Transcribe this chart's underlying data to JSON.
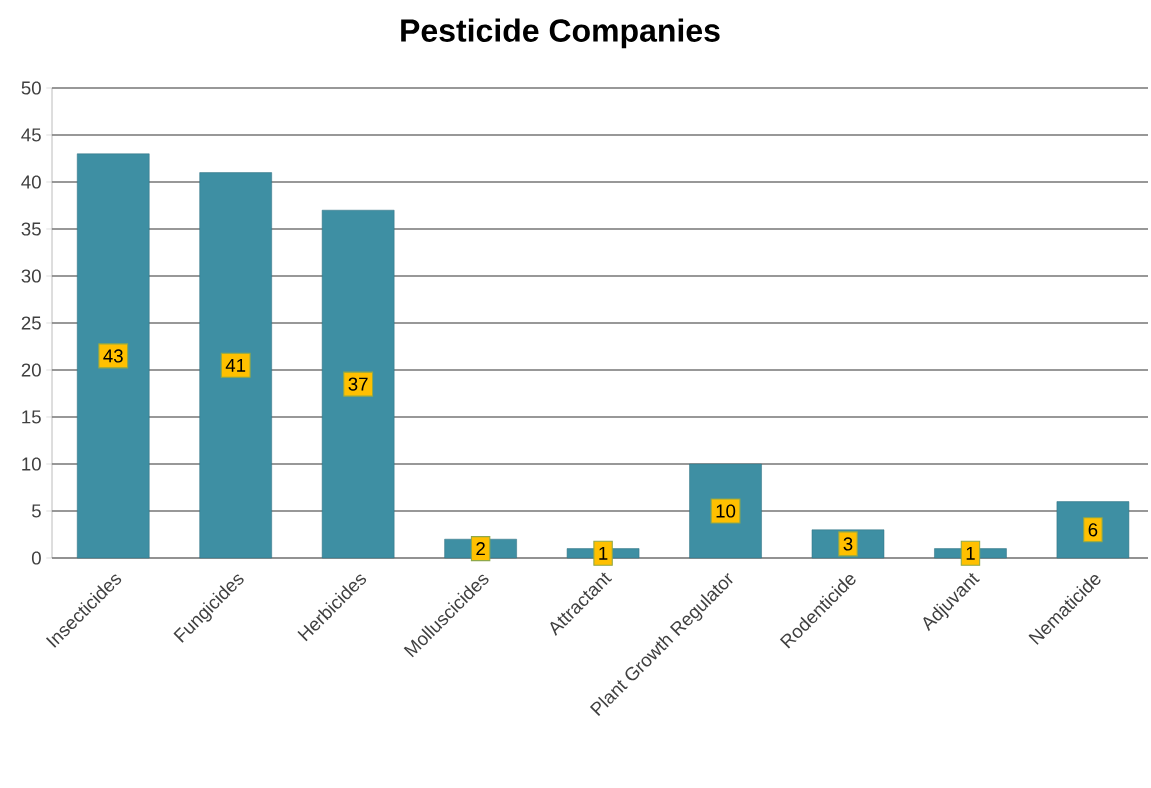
{
  "chart_data": {
    "type": "bar",
    "title": "Pesticide Companies",
    "categories": [
      "Insecticides",
      "Fungicides",
      "Herbicides",
      "Molluscicides",
      "Attractant",
      "Plant Growth Regulator",
      "Rodenticide",
      "Adjuvant",
      "Nematicide"
    ],
    "values": [
      43,
      41,
      37,
      2,
      1,
      10,
      3,
      1,
      6
    ],
    "color": "#3e8fa3",
    "ylim": [
      0,
      50
    ],
    "yticks": [
      0,
      5,
      10,
      15,
      20,
      25,
      30,
      35,
      40,
      45,
      50
    ],
    "grid": "y",
    "data_labels": true
  }
}
